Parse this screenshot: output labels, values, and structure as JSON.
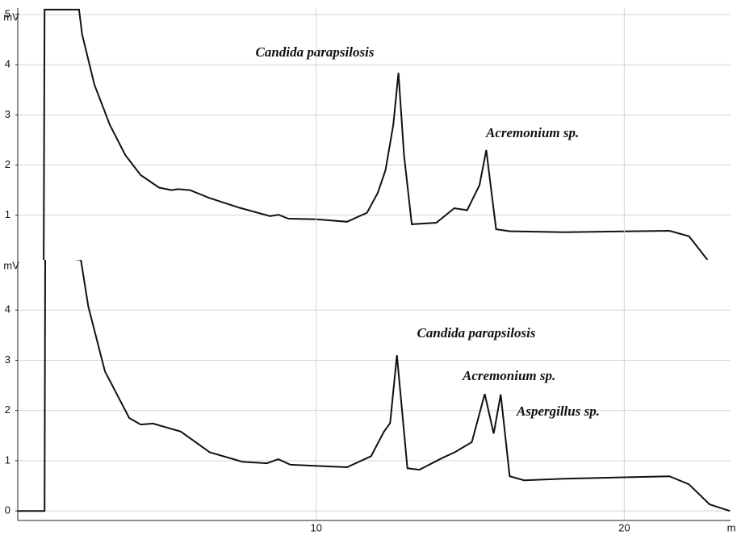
{
  "chart_data": [
    {
      "type": "line",
      "y_label": "mV",
      "color": "#111111",
      "xlim": [
        0.31,
        23.45
      ],
      "ylim": [
        0.11,
        5.13
      ],
      "yticks": [
        1,
        2,
        3,
        4,
        5
      ],
      "grid": true,
      "x": [
        1.15,
        1.18,
        2.3,
        2.4,
        2.8,
        3.3,
        3.8,
        4.3,
        4.9,
        5.3,
        5.5,
        5.9,
        6.5,
        7.5,
        8.5,
        8.77,
        9.1,
        10.0,
        11.0,
        11.65,
        12.0,
        12.25,
        12.5,
        12.67,
        12.85,
        13.1,
        13.9,
        14.48,
        14.9,
        15.3,
        15.52,
        15.7,
        15.84,
        16.3,
        18.06,
        21.47,
        22.1,
        22.7
      ],
      "values": [
        0,
        5.1,
        5.1,
        4.6,
        3.6,
        2.8,
        2.2,
        1.8,
        1.55,
        1.5,
        1.52,
        1.5,
        1.35,
        1.15,
        0.98,
        1.01,
        0.93,
        0.92,
        0.87,
        1.05,
        1.45,
        1.9,
        2.8,
        3.84,
        2.2,
        0.82,
        0.85,
        1.14,
        1.1,
        1.6,
        2.3,
        1.4,
        0.72,
        0.68,
        0.66,
        0.69,
        0.58,
        0.11
      ],
      "annotations": [
        "Candida parapsilosis",
        "Acremonium sp."
      ]
    },
    {
      "type": "line",
      "y_label": "mV",
      "x_label": "m",
      "color": "#111111",
      "xlim": [
        0.31,
        23.45
      ],
      "ylim": [
        -0.19,
        5
      ],
      "yticks": [
        0,
        1,
        2,
        3,
        4
      ],
      "xticks": [
        10,
        20
      ],
      "grid": true,
      "x": [
        0.31,
        1.18,
        1.2,
        2.36,
        2.6,
        3.14,
        3.93,
        4.3,
        4.7,
        5.6,
        6.54,
        7.6,
        8.4,
        8.77,
        9.16,
        11.0,
        11.78,
        12.2,
        12.4,
        12.62,
        12.96,
        13.35,
        14.08,
        14.5,
        15.05,
        15.47,
        15.76,
        15.99,
        16.28,
        16.75,
        18.06,
        21.47,
        22.1,
        22.77,
        23.43
      ],
      "values": [
        0,
        0,
        5.1,
        5.0,
        4.07,
        2.78,
        1.85,
        1.72,
        1.74,
        1.58,
        1.17,
        0.98,
        0.95,
        1.03,
        0.92,
        0.87,
        1.09,
        1.58,
        1.75,
        3.1,
        0.85,
        0.82,
        1.05,
        1.17,
        1.37,
        2.33,
        1.54,
        2.32,
        0.69,
        0.61,
        0.64,
        0.69,
        0.53,
        0.13,
        0
      ],
      "annotations": [
        "Candida parapsilosis",
        "Acremonium sp.",
        "Aspergillus sp."
      ]
    }
  ]
}
